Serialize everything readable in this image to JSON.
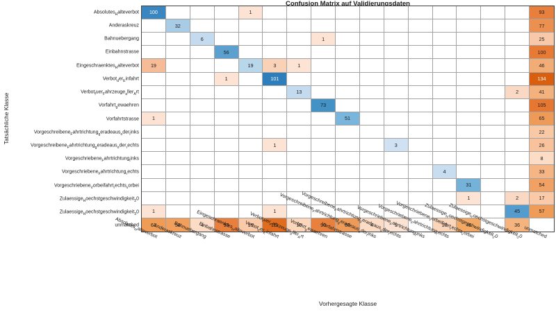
{
  "title": "Confusion Matrix auf Validierungsdaten",
  "x_axis_title": "Vorhergesagte Klasse",
  "y_axis_title": "Tatsächliche Klasse",
  "chart_data": {
    "type": "heatmap",
    "title": "Confusion Matrix auf Validierungsdaten",
    "xlabel": "Vorhergesagte Klasse",
    "ylabel": "Tatsächliche Klasse",
    "classes": [
      "Absolutes_Halteverbot",
      "Anderaskreuz",
      "Bahnuebergang",
      "Einbahnstrasse",
      "Eingeschraenktes_Halteverbot",
      "Verbot_der_Einfahrt",
      "Verbot_fuer_Fahrzeuge_aller_Art",
      "Vorfahrt_gewaehren",
      "Vorfahrtstrasse",
      "Vorgeschreibene_Fahrtrichtung_geradeaus_oder_links",
      "Vorgeschreibene_Fahrtrichtung_geradeaus_oder_rechts",
      "Vorgeschriebene_Fahrtrichtung_links",
      "Vorgeschriebene_Fahrtrichtung_rechts",
      "Vorgeschriebene_Vorbeifahrt_rechts_vorbei",
      "Zulaessige_Hoechstgeschwindigkeit_20",
      "Zulaessige_Hoechstgeschwindigkeit_30",
      "unmatched"
    ],
    "matrix": [
      [
        100,
        0,
        0,
        0,
        1,
        0,
        0,
        0,
        0,
        0,
        0,
        0,
        0,
        0,
        0,
        0,
        93
      ],
      [
        0,
        32,
        0,
        0,
        0,
        0,
        0,
        0,
        0,
        0,
        0,
        0,
        0,
        0,
        0,
        0,
        77
      ],
      [
        0,
        0,
        6,
        0,
        0,
        0,
        0,
        1,
        0,
        0,
        0,
        0,
        0,
        0,
        0,
        0,
        25
      ],
      [
        0,
        0,
        0,
        56,
        0,
        0,
        0,
        0,
        0,
        0,
        0,
        0,
        0,
        0,
        0,
        0,
        100
      ],
      [
        19,
        0,
        0,
        0,
        19,
        3,
        1,
        0,
        0,
        0,
        0,
        0,
        0,
        0,
        0,
        0,
        46
      ],
      [
        0,
        0,
        0,
        1,
        0,
        101,
        0,
        0,
        0,
        0,
        0,
        0,
        0,
        0,
        0,
        0,
        134
      ],
      [
        0,
        0,
        0,
        0,
        0,
        0,
        13,
        0,
        0,
        0,
        0,
        0,
        0,
        0,
        0,
        2,
        41
      ],
      [
        0,
        0,
        0,
        0,
        0,
        0,
        0,
        73,
        0,
        0,
        0,
        0,
        0,
        0,
        0,
        0,
        105
      ],
      [
        1,
        0,
        0,
        0,
        0,
        0,
        0,
        0,
        51,
        0,
        0,
        0,
        0,
        0,
        0,
        0,
        65
      ],
      [
        0,
        0,
        0,
        0,
        0,
        0,
        0,
        0,
        0,
        0,
        0,
        0,
        0,
        0,
        0,
        0,
        22
      ],
      [
        0,
        0,
        0,
        0,
        0,
        1,
        0,
        0,
        0,
        0,
        3,
        0,
        0,
        0,
        0,
        0,
        26
      ],
      [
        0,
        0,
        0,
        0,
        0,
        0,
        0,
        0,
        0,
        0,
        0,
        0,
        0,
        0,
        0,
        0,
        8
      ],
      [
        0,
        0,
        0,
        0,
        0,
        0,
        0,
        0,
        0,
        0,
        0,
        0,
        4,
        0,
        0,
        0,
        33
      ],
      [
        0,
        0,
        0,
        0,
        0,
        0,
        0,
        0,
        0,
        0,
        0,
        0,
        0,
        31,
        0,
        0,
        54
      ],
      [
        0,
        0,
        0,
        0,
        0,
        0,
        0,
        0,
        0,
        0,
        0,
        0,
        0,
        1,
        0,
        2,
        17
      ],
      [
        1,
        0,
        0,
        0,
        0,
        1,
        0,
        0,
        0,
        0,
        0,
        0,
        0,
        0,
        0,
        45,
        57
      ],
      [
        61,
        58,
        4,
        93,
        16,
        111,
        10,
        90,
        65,
        4,
        1,
        0,
        10,
        48,
        0,
        36,
        0
      ]
    ],
    "colormap": {
      "diagonal": "blues",
      "off_diagonal": "oranges",
      "empty": "#ffffff"
    },
    "legend": "none",
    "grid": "on"
  },
  "cell_colors": {
    "0,0": "#3a86c1",
    "0,4": "#fce3d3",
    "0,16": "#e87f3c",
    "1,1": "#a9cce6",
    "1,16": "#ec9051",
    "2,2": "#c4daee",
    "2,7": "#fce3d3",
    "2,16": "#f8c8a8",
    "3,3": "#5ca0d0",
    "3,16": "#e77b35",
    "4,0": "#f6bc97",
    "4,4": "#b9d7eb",
    "4,5": "#f9d1b7",
    "4,6": "#fce3d3",
    "4,16": "#f2ad77",
    "5,3": "#fce3d3",
    "5,5": "#2e7ebc",
    "5,16": "#d95f0e",
    "6,6": "#c4daee",
    "6,15": "#fad9c4",
    "6,16": "#f3b17e",
    "7,7": "#4292c6",
    "7,16": "#e67730",
    "8,0": "#fce3d3",
    "8,8": "#7ab5dc",
    "8,16": "#ee9a59",
    "9,16": "#f9c9a6",
    "10,5": "#fce3d3",
    "10,10": "#cfe1f3",
    "10,16": "#f8c29c",
    "11,16": "#fcdcc4",
    "12,12": "#c9ddf0",
    "12,16": "#f5b585",
    "13,13": "#74b2da",
    "13,16": "#f0a163",
    "14,13": "#fce3d3",
    "14,15": "#fad9c4",
    "14,16": "#f9c9a8",
    "15,0": "#fce3d3",
    "15,5": "#fce3d3",
    "15,15": "#549bce",
    "15,16": "#ef9c59",
    "16,0": "#ef9c57",
    "16,1": "#f09f5c",
    "16,2": "#fcdcc5",
    "16,3": "#e87f3c",
    "16,4": "#fac9a8",
    "16,5": "#e06d1f",
    "16,6": "#fbd6ba",
    "16,7": "#e8813e",
    "16,8": "#ee9a59",
    "16,9": "#fcdcc5",
    "16,10": "#fce3d3",
    "16,12": "#fbd6ba",
    "16,13": "#f2a965",
    "16,15": "#f5b47e"
  },
  "white_text_cells": [
    "0,0",
    "5,5",
    "5,16"
  ],
  "style": {
    "grid_line": "#a3a3a3",
    "frame": "#404040",
    "text": "#1a1a1a",
    "background": "#ffffff"
  }
}
